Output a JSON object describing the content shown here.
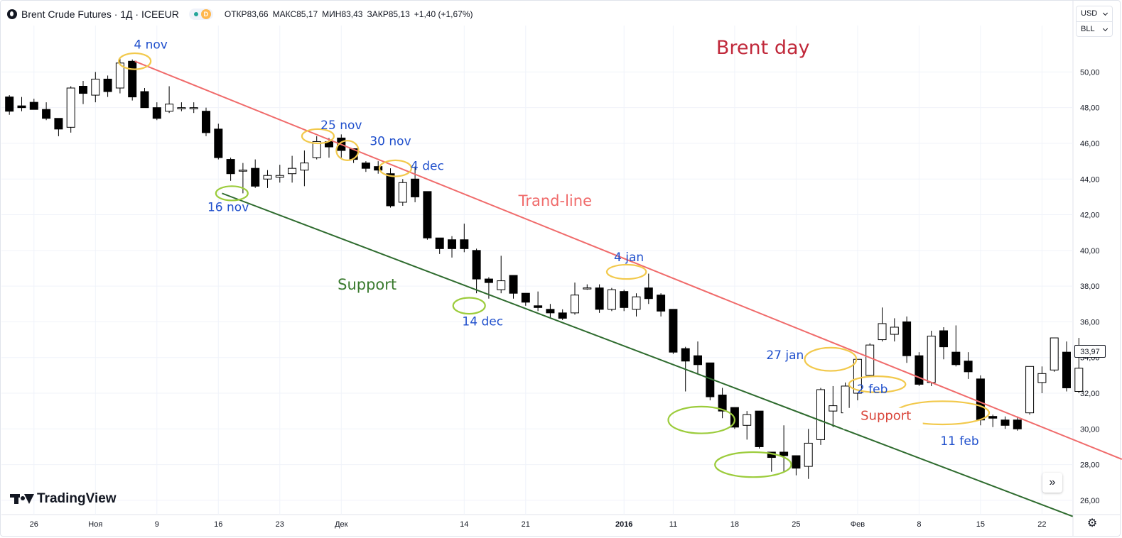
{
  "header": {
    "title": "Brent Crude Futures · 1Д · ICEEUR",
    "market_badge": "D",
    "ohlc": [
      {
        "label": "ОТКР",
        "value": "83,66"
      },
      {
        "label": "МАКС",
        "value": "85,17"
      },
      {
        "label": "МИН",
        "value": "83,43"
      },
      {
        "label": "ЗАКР",
        "value": "85,13"
      }
    ],
    "change": "+1,40 (+1,67%)"
  },
  "currency": {
    "currency": "USD",
    "unit": "BLL"
  },
  "logo_text": "TradingView",
  "scroll_icon": "double-chevron-right-icon",
  "settings_icon": "gear-icon",
  "last_price": "33,97",
  "colors": {
    "trend_line": "#f06b6b",
    "support_line": "#2e6b2e",
    "annotation_blue": "#1f4fcc",
    "title_red": "#c0283a",
    "circle_yellow": "#f2c94c",
    "circle_green": "#9ccc3c"
  },
  "chart_data": {
    "type": "candlestick",
    "title": "Brent day",
    "y_ticks": [
      "26,00",
      "28,00",
      "30,00",
      "32,00",
      "34,00",
      "36,00",
      "38,00",
      "40,00",
      "42,00",
      "44,00",
      "46,00",
      "48,00",
      "50,00"
    ],
    "ylim": [
      25.2,
      52.6
    ],
    "x_ticks": [
      {
        "label": "26",
        "index": 2
      },
      {
        "label": "Ноя",
        "index": 7
      },
      {
        "label": "9",
        "index": 12
      },
      {
        "label": "16",
        "index": 17
      },
      {
        "label": "23",
        "index": 22
      },
      {
        "label": "Дек",
        "index": 27
      },
      {
        "label": "14",
        "index": 37
      },
      {
        "label": "21",
        "index": 42
      },
      {
        "label": "2016",
        "index": 50
      },
      {
        "label": "11",
        "index": 54
      },
      {
        "label": "18",
        "index": 59
      },
      {
        "label": "25",
        "index": 64
      },
      {
        "label": "Фев",
        "index": 69
      },
      {
        "label": "8",
        "index": 74
      },
      {
        "label": "15",
        "index": 79
      },
      {
        "label": "22",
        "index": 84
      }
    ],
    "candles": [
      [
        48.6,
        48.7,
        47.6,
        47.8
      ],
      [
        48.1,
        48.6,
        47.8,
        48.0
      ],
      [
        48.3,
        48.5,
        47.9,
        47.9
      ],
      [
        47.9,
        48.3,
        47.3,
        47.4
      ],
      [
        47.4,
        47.4,
        46.4,
        46.8
      ],
      [
        46.9,
        49.2,
        46.6,
        49.1
      ],
      [
        49.2,
        49.5,
        48.2,
        48.8
      ],
      [
        48.7,
        50.0,
        48.3,
        49.6
      ],
      [
        49.6,
        49.8,
        48.6,
        48.9
      ],
      [
        49.1,
        50.8,
        48.8,
        50.5
      ],
      [
        50.6,
        50.7,
        48.4,
        48.6
      ],
      [
        48.9,
        49.1,
        48.0,
        48.0
      ],
      [
        48.0,
        48.3,
        47.3,
        47.4
      ],
      [
        47.8,
        49.2,
        47.7,
        48.2
      ],
      [
        48.0,
        48.3,
        47.8,
        48.0
      ],
      [
        48.0,
        48.3,
        47.7,
        48.0
      ],
      [
        47.8,
        48.0,
        46.4,
        46.6
      ],
      [
        46.8,
        47.1,
        45.1,
        45.2
      ],
      [
        45.1,
        45.2,
        43.9,
        44.3
      ],
      [
        44.5,
        44.9,
        43.2,
        44.5
      ],
      [
        44.6,
        45.1,
        43.5,
        43.6
      ],
      [
        44.0,
        44.5,
        43.5,
        44.2
      ],
      [
        44.1,
        44.8,
        43.8,
        44.2
      ],
      [
        44.3,
        45.3,
        43.8,
        44.6
      ],
      [
        44.5,
        45.6,
        43.6,
        44.9
      ],
      [
        45.2,
        46.4,
        45.1,
        46.1
      ],
      [
        46.1,
        46.3,
        45.2,
        45.8
      ],
      [
        46.3,
        46.5,
        45.2,
        45.6
      ],
      [
        45.7,
        45.7,
        44.9,
        45.1
      ],
      [
        44.9,
        45.0,
        44.4,
        44.6
      ],
      [
        44.7,
        45.0,
        44.3,
        44.5
      ],
      [
        44.3,
        44.6,
        42.4,
        42.5
      ],
      [
        42.7,
        44.0,
        42.5,
        43.8
      ],
      [
        44.0,
        44.7,
        42.7,
        43.0
      ],
      [
        43.3,
        43.3,
        40.6,
        40.7
      ],
      [
        40.7,
        40.7,
        39.8,
        40.1
      ],
      [
        40.6,
        40.8,
        39.6,
        40.1
      ],
      [
        40.6,
        41.5,
        39.9,
        40.1
      ],
      [
        40.0,
        40.1,
        37.6,
        38.4
      ],
      [
        38.4,
        38.5,
        37.3,
        38.2
      ],
      [
        37.8,
        39.7,
        37.6,
        38.3
      ],
      [
        38.6,
        38.6,
        37.3,
        37.6
      ],
      [
        37.6,
        37.6,
        36.9,
        37.1
      ],
      [
        36.9,
        37.7,
        36.6,
        36.8
      ],
      [
        36.7,
        37.0,
        36.2,
        36.5
      ],
      [
        36.5,
        36.7,
        36.1,
        36.2
      ],
      [
        36.5,
        38.2,
        36.4,
        37.5
      ],
      [
        37.9,
        38.1,
        37.8,
        37.9
      ],
      [
        37.9,
        38.1,
        36.5,
        36.7
      ],
      [
        36.7,
        37.9,
        36.6,
        37.8
      ],
      [
        37.7,
        37.8,
        36.6,
        36.8
      ],
      [
        36.7,
        37.6,
        36.3,
        37.4
      ],
      [
        37.9,
        38.7,
        37.0,
        37.3
      ],
      [
        37.5,
        37.6,
        36.3,
        36.6
      ],
      [
        36.7,
        36.7,
        34.2,
        34.3
      ],
      [
        34.5,
        34.6,
        32.1,
        33.8
      ],
      [
        34.1,
        34.9,
        33.1,
        33.6
      ],
      [
        33.7,
        33.7,
        31.6,
        31.8
      ],
      [
        31.9,
        32.3,
        30.6,
        31.0
      ],
      [
        31.2,
        31.2,
        30.0,
        30.1
      ],
      [
        30.2,
        31.0,
        29.4,
        30.8
      ],
      [
        31.0,
        31.0,
        28.9,
        29.0
      ],
      [
        28.7,
        28.7,
        27.6,
        28.4
      ],
      [
        28.7,
        30.2,
        27.6,
        28.5
      ],
      [
        28.5,
        28.5,
        27.4,
        27.8
      ],
      [
        27.9,
        30.0,
        27.2,
        29.2
      ],
      [
        29.4,
        32.3,
        29.1,
        32.2
      ],
      [
        31.0,
        32.4,
        30.1,
        31.3
      ],
      [
        30.9,
        32.6,
        30.0,
        32.4
      ],
      [
        32.0,
        33.8,
        31.6,
        33.9
      ],
      [
        33.0,
        34.8,
        33.0,
        34.7
      ],
      [
        35.0,
        36.8,
        34.9,
        35.9
      ],
      [
        35.3,
        36.2,
        34.9,
        35.7
      ],
      [
        36.0,
        36.3,
        33.7,
        34.1
      ],
      [
        34.1,
        34.3,
        32.4,
        32.5
      ],
      [
        32.6,
        35.5,
        32.4,
        35.2
      ],
      [
        35.5,
        35.7,
        33.9,
        34.6
      ],
      [
        34.3,
        35.8,
        33.5,
        33.6
      ],
      [
        33.8,
        34.3,
        32.8,
        33.2
      ],
      [
        32.8,
        33.0,
        30.2,
        30.5
      ],
      [
        30.7,
        30.8,
        30.1,
        30.6
      ],
      [
        30.5,
        30.7,
        30.0,
        30.2
      ],
      [
        30.5,
        30.7,
        29.9,
        30.0
      ],
      [
        30.9,
        33.5,
        30.8,
        33.5
      ],
      [
        32.6,
        33.5,
        32.0,
        33.1
      ],
      [
        33.3,
        35.0,
        33.2,
        35.1
      ],
      [
        34.3,
        34.9,
        32.1,
        32.3
      ],
      [
        32.1,
        35.1,
        32.0,
        33.4
      ]
    ],
    "lines": [
      {
        "name": "Trand-line",
        "from": {
          "i": 10.2,
          "price": 50.6
        },
        "to": {
          "i": 90.5,
          "price": 28.3
        }
      },
      {
        "name": "Support",
        "from": {
          "i": 17.3,
          "price": 43.2
        },
        "to": {
          "i": 86.5,
          "price": 25.1
        }
      }
    ],
    "annotations": [
      {
        "text": "4 nov",
        "i": 11.5,
        "price": 51.3,
        "color": "blue"
      },
      {
        "text": "25 nov",
        "i": 27.0,
        "price": 46.8,
        "color": "blue"
      },
      {
        "text": "30 nov",
        "i": 31.0,
        "price": 45.9,
        "color": "blue"
      },
      {
        "text": "4 dec",
        "i": 34.0,
        "price": 44.5,
        "color": "blue"
      },
      {
        "text": "16 nov",
        "i": 17.8,
        "price": 42.2,
        "color": "blue"
      },
      {
        "text": "Trand-line",
        "i": 44.4,
        "price": 42.5,
        "color": "red"
      },
      {
        "text": "Support",
        "i": 29.1,
        "price": 37.8,
        "color": "green"
      },
      {
        "text": "14 dec",
        "i": 38.5,
        "price": 35.8,
        "color": "blue"
      },
      {
        "text": "4 jan",
        "i": 50.4,
        "price": 39.4,
        "color": "blue"
      },
      {
        "text": "27 jan",
        "i": 63.1,
        "price": 33.9,
        "color": "blue"
      },
      {
        "text": "2 feb",
        "i": 70.2,
        "price": 32.0,
        "color": "blue"
      },
      {
        "text": "Support",
        "i": 71.3,
        "price": 30.5,
        "color": "red"
      },
      {
        "text": "11 feb",
        "i": 77.3,
        "price": 29.1,
        "color": "blue"
      },
      {
        "text": "Brent day",
        "i": 61.3,
        "price": 51.0,
        "color": "title"
      }
    ],
    "circles": [
      {
        "i": 10.2,
        "price": 50.6,
        "rx": 1.3,
        "rp": 0.45,
        "color": "yellow"
      },
      {
        "i": 25.1,
        "price": 46.4,
        "rx": 1.3,
        "rp": 0.4,
        "color": "yellow"
      },
      {
        "i": 27.5,
        "price": 45.6,
        "rx": 0.9,
        "rp": 0.55,
        "color": "yellow"
      },
      {
        "i": 31.4,
        "price": 44.6,
        "rx": 1.3,
        "rp": 0.45,
        "color": "yellow"
      },
      {
        "i": 18.1,
        "price": 43.2,
        "rx": 1.3,
        "rp": 0.4,
        "color": "green"
      },
      {
        "i": 37.4,
        "price": 36.9,
        "rx": 1.3,
        "rp": 0.45,
        "color": "green"
      },
      {
        "i": 50.2,
        "price": 38.8,
        "rx": 1.6,
        "rp": 0.4,
        "color": "yellow"
      },
      {
        "i": 56.3,
        "price": 30.5,
        "rx": 2.7,
        "rp": 0.75,
        "color": "green"
      },
      {
        "i": 60.5,
        "price": 28.0,
        "rx": 3.1,
        "rp": 0.7,
        "color": "green"
      },
      {
        "i": 66.8,
        "price": 33.9,
        "rx": 2.1,
        "rp": 0.65,
        "color": "yellow"
      },
      {
        "i": 70.6,
        "price": 32.5,
        "rx": 2.3,
        "rp": 0.45,
        "color": "yellow"
      },
      {
        "i": 75.9,
        "price": 30.9,
        "rx": 3.8,
        "rp": 0.65,
        "color": "yellow"
      }
    ]
  }
}
